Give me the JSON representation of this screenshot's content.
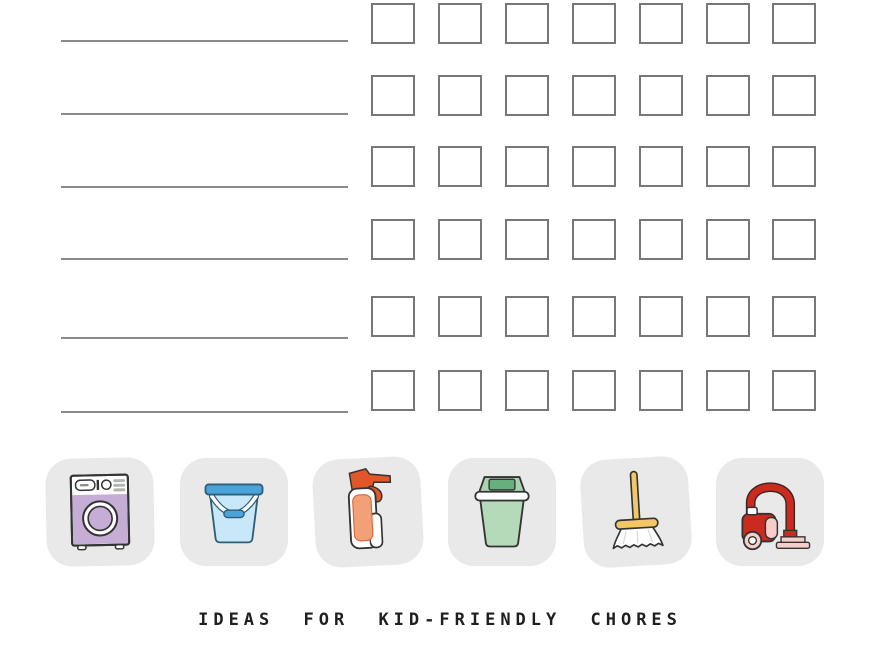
{
  "caption": {
    "text": "IDEAS FOR KID-FRIENDLY CHORES"
  },
  "chart": {
    "rows": 6,
    "columns": 7,
    "chore_names": [
      "",
      "",
      "",
      "",
      "",
      ""
    ]
  },
  "icons": [
    {
      "name": "washing-machine-icon",
      "label": "washing machine"
    },
    {
      "name": "bucket-icon",
      "label": "bucket"
    },
    {
      "name": "spray-bottle-icon",
      "label": "spray bottle"
    },
    {
      "name": "trash-can-icon",
      "label": "trash can"
    },
    {
      "name": "broom-icon",
      "label": "broom"
    },
    {
      "name": "vacuum-icon",
      "label": "vacuum cleaner"
    }
  ],
  "colors": {
    "tile_background": "#e9e9e9",
    "checkbox_border": "#777777",
    "line": "#8a8a8a",
    "text": "#1f1f1f",
    "washer_purple": "#c6add5",
    "bucket_blue": "#4ba3d9",
    "bucket_light_blue": "#c8e7f8",
    "bucket_outline": "#2d5f78",
    "spray_orange": "#e25627",
    "spray_label": "#f2a078",
    "trash_green": "#b4dab9",
    "trash_lid_green": "#a9d3ae",
    "trash_dark_green": "#66b07d",
    "broom_yellow": "#f3c766",
    "vacuum_red": "#cb2b1f",
    "vacuum_pink": "#f7cdc9"
  }
}
